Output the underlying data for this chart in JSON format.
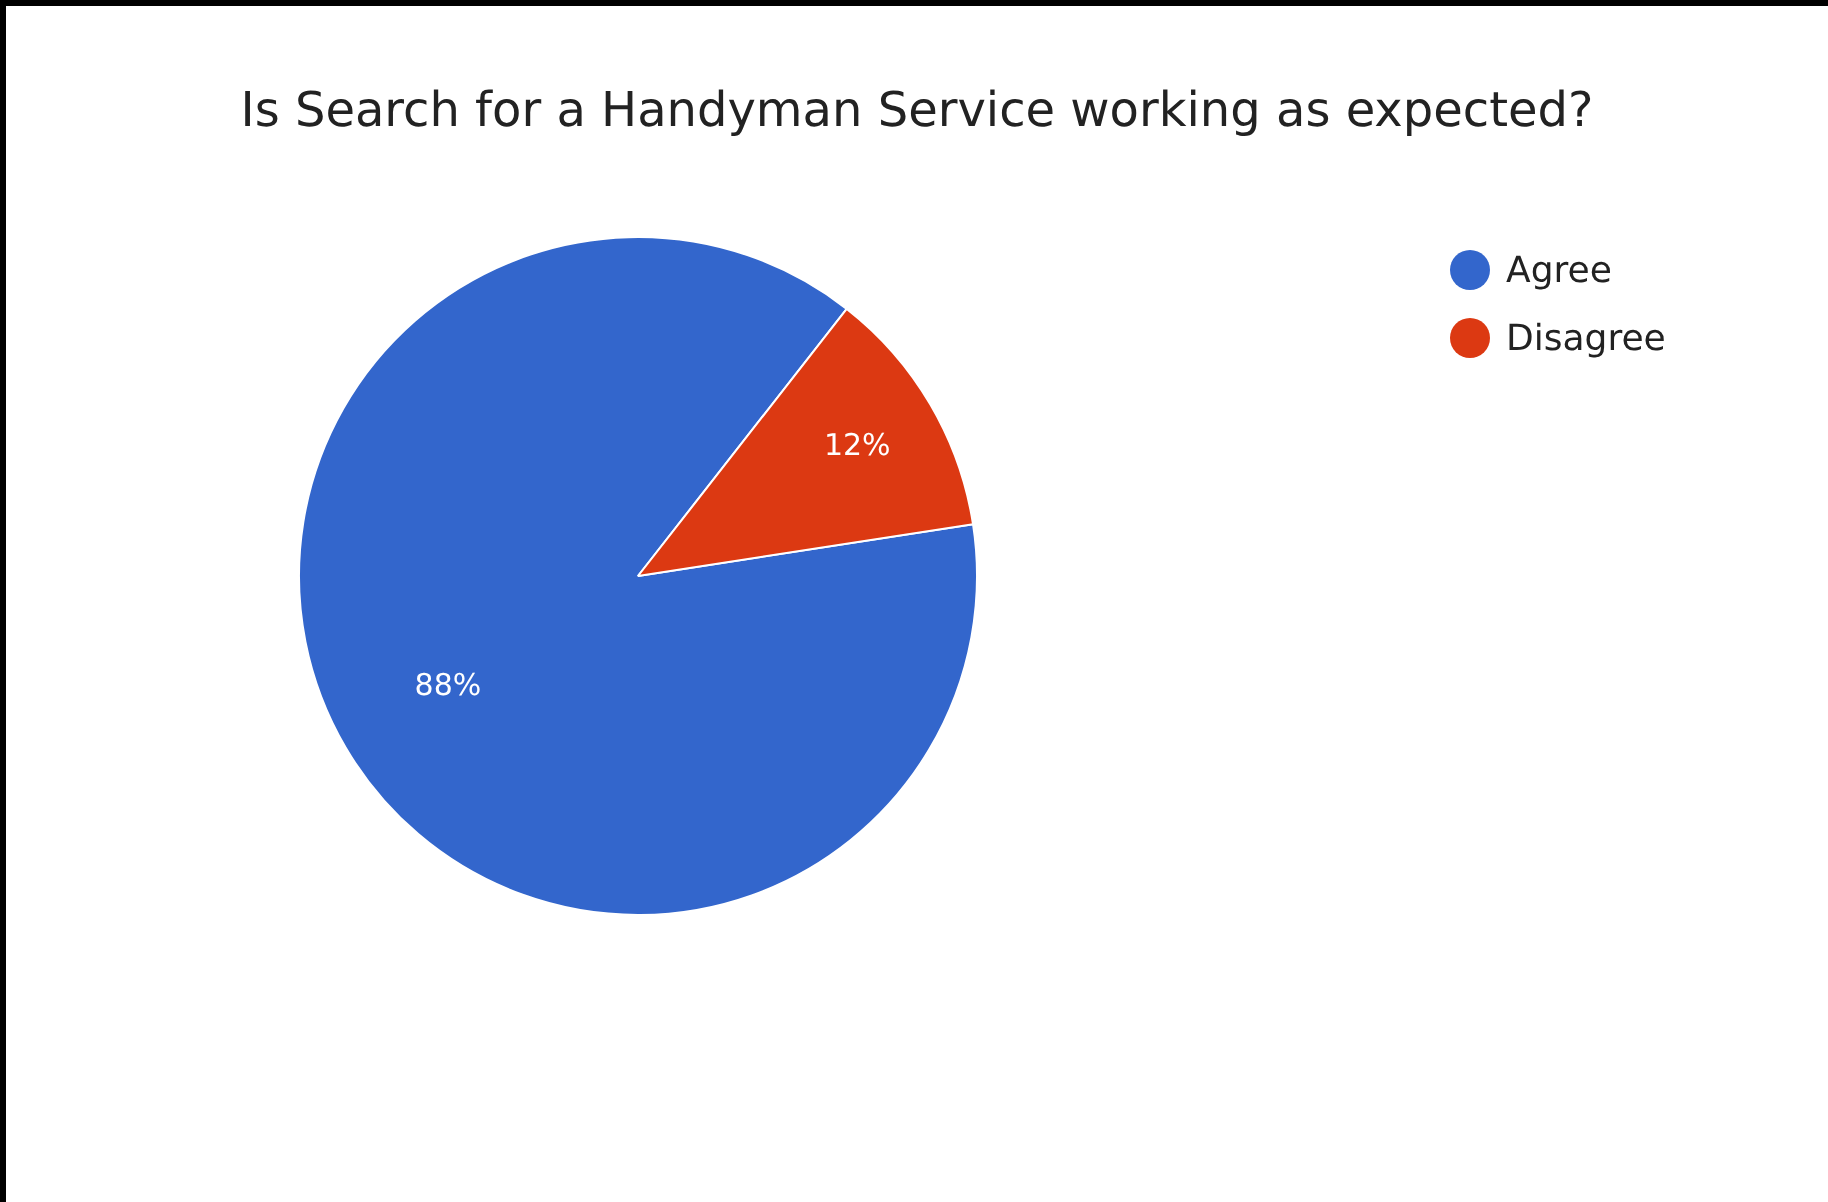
{
  "chart_data": {
    "type": "pie",
    "title": "Is Search for a Handyman Service working as expected?",
    "categories": [
      "Agree",
      "Disagree"
    ],
    "values": [
      88,
      12
    ],
    "colors": [
      "#3366cc",
      "#dc3912"
    ],
    "value_labels": [
      "88%",
      "12%"
    ],
    "legend": "top right"
  }
}
